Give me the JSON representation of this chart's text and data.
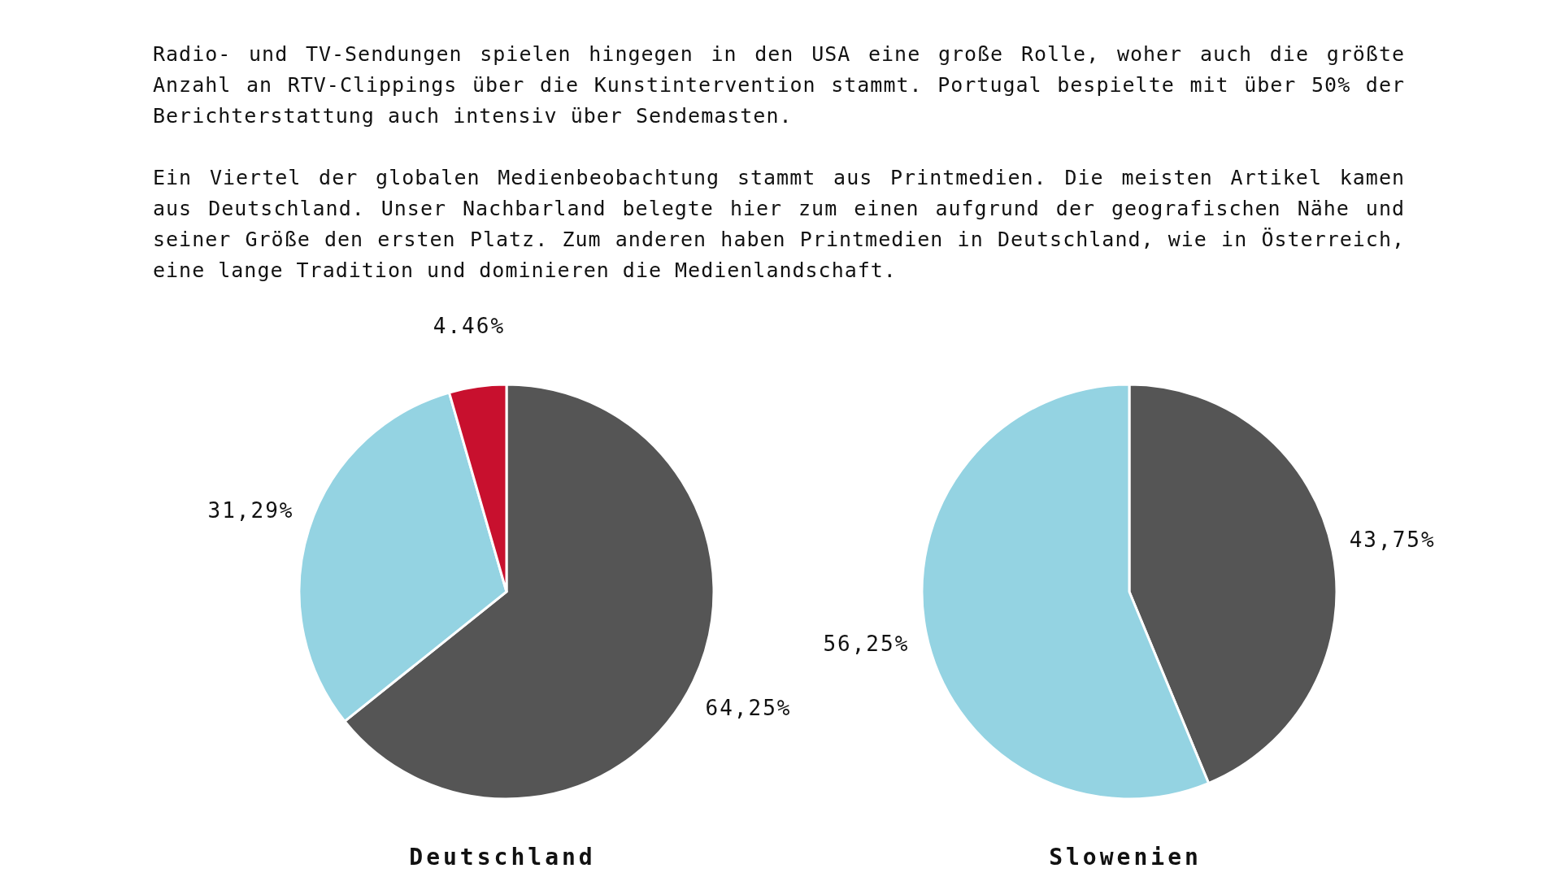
{
  "chart_data": [
    {
      "type": "other",
      "annotations": [
        "Radio- und TV-Sendungen spielen hingegen in den USA eine große Rolle, woher auch die größte Anzahl an RTV-Clippings über die Kunstintervention stammt. Portugal bespielte mit über 50% der Berichterstattung auch intensiv über Sendemasten.",
        "Ein Viertel der globalen Medienbeobachtung stammt aus Printmedien. Die meisten Artikel kamen aus Deutschland. Unser Nachbarland belegte hier zum einen aufgrund der geografischen Nähe und seiner Größe den ersten Platz. Zum anderen haben Printmedien in Deutschland, wie in Österreich, eine lange Tradition und dominieren die Medienlandschaft."
      ]
    },
    {
      "type": "pie",
      "title": "Deutschland",
      "categories": [
        null,
        null,
        null
      ],
      "values": [
        64.25,
        31.29,
        4.46
      ],
      "colors": [
        "#555555",
        "#94d3e2",
        "#c8102e"
      ],
      "value_labels": [
        "64,25%",
        "31,29%",
        "4.46%"
      ]
    },
    {
      "type": "pie",
      "title": "Slowenien",
      "categories": [
        null,
        null
      ],
      "values": [
        43.75,
        56.25
      ],
      "colors": [
        "#555555",
        "#94d3e2"
      ],
      "value_labels": [
        "43,75%",
        "56,25%"
      ]
    }
  ]
}
